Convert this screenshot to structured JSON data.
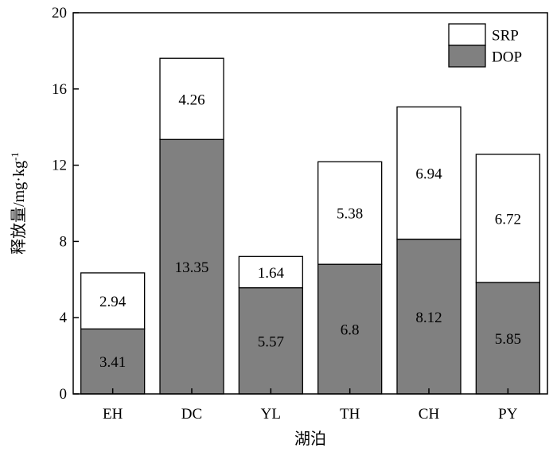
{
  "chart_data": {
    "type": "bar",
    "stacked": true,
    "categories": [
      "EH",
      "DC",
      "YL",
      "TH",
      "CH",
      "PY"
    ],
    "series": [
      {
        "name": "DOP",
        "values": [
          3.41,
          13.35,
          5.57,
          6.8,
          8.12,
          5.85
        ],
        "labels": [
          "3.41",
          "13.35",
          "5.57",
          "6.8",
          "8.12",
          "5.85"
        ],
        "color": "#808080"
      },
      {
        "name": "SRP",
        "values": [
          2.94,
          4.26,
          1.64,
          5.38,
          6.94,
          6.72
        ],
        "labels": [
          "2.94",
          "4.26",
          "1.64",
          "5.38",
          "6.94",
          "6.72"
        ],
        "color": "#ffffff"
      }
    ],
    "xlabel": "湖泊",
    "ylabel_main": "释放量/mg·kg",
    "ylabel_sup": "-1",
    "ylim": [
      0,
      20
    ],
    "yticks": [
      0,
      4,
      8,
      12,
      16,
      20
    ],
    "ytick_labels": [
      "0",
      "4",
      "8",
      "12",
      "16",
      "20"
    ],
    "grid": false,
    "legend_position": "top-right",
    "legend_order": [
      "SRP",
      "DOP"
    ]
  }
}
